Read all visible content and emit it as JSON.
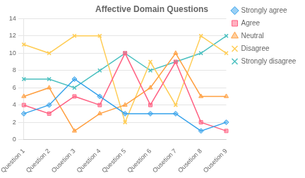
{
  "chart_data": {
    "type": "line",
    "title": "Affective Domain Questions",
    "categories": [
      "Question 1",
      "Question 2",
      "Ousetion 3",
      "Question 4",
      "Question 5",
      "Question 6",
      "Ousetion 7",
      "Ousetion 8",
      "Ousetion 9"
    ],
    "series": [
      {
        "name": "Strongly agree",
        "values": [
          3,
          4,
          7,
          5,
          3,
          3,
          3,
          1,
          2
        ],
        "marker": "diamond"
      },
      {
        "name": "Agree",
        "values": [
          4,
          3,
          5,
          4,
          10,
          4,
          9,
          2,
          1
        ],
        "marker": "square"
      },
      {
        "name": "Neutral",
        "values": [
          5,
          6,
          1,
          3,
          4,
          6,
          10,
          5,
          5
        ],
        "marker": "triangle"
      },
      {
        "name": "Disagree",
        "values": [
          11,
          10,
          12,
          12,
          2,
          9,
          4,
          12,
          10
        ],
        "marker": "x"
      },
      {
        "name": "Strongly disagree",
        "values": [
          7,
          7,
          6,
          8,
          10,
          8,
          9,
          10,
          12
        ],
        "marker": "x"
      }
    ],
    "ylim": [
      0,
      14
    ],
    "yticks": [
      0,
      2,
      4,
      6,
      8,
      10,
      12,
      14
    ],
    "grid": true,
    "legend": "right"
  }
}
